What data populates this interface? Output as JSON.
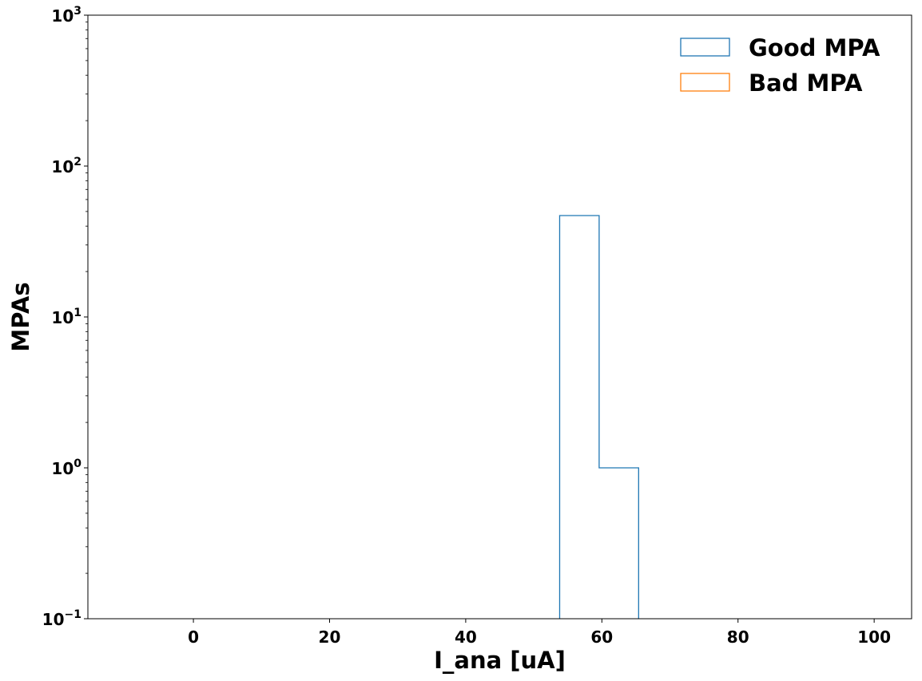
{
  "chart_data": {
    "type": "histogram",
    "xlabel": "I_ana [uA]",
    "ylabel": "MPAs",
    "xlim": [
      -15.5,
      105.5
    ],
    "ylim": [
      0.1,
      1000
    ],
    "yscale": "log",
    "x_ticks": [
      0,
      20,
      40,
      60,
      80,
      100
    ],
    "x_tick_labels": [
      "0",
      "20",
      "40",
      "60",
      "80",
      "100"
    ],
    "y_ticks": [
      {
        "value": 0.1,
        "base": "10",
        "exp": "−1"
      },
      {
        "value": 1,
        "base": "10",
        "exp": "0"
      },
      {
        "value": 10,
        "base": "10",
        "exp": "1"
      },
      {
        "value": 100,
        "base": "10",
        "exp": "2"
      },
      {
        "value": 1000,
        "base": "10",
        "exp": "3"
      }
    ],
    "legend_position": "top-right",
    "series": [
      {
        "name": "Good MPA",
        "color": "#1f77b4",
        "histtype": "step",
        "bins": [
          {
            "x0": 53.8,
            "x1": 59.6,
            "count": 47
          },
          {
            "x0": 59.6,
            "x1": 65.4,
            "count": 1
          }
        ]
      },
      {
        "name": "Bad MPA",
        "color": "#ff7f0e",
        "histtype": "step",
        "bins": []
      }
    ]
  }
}
